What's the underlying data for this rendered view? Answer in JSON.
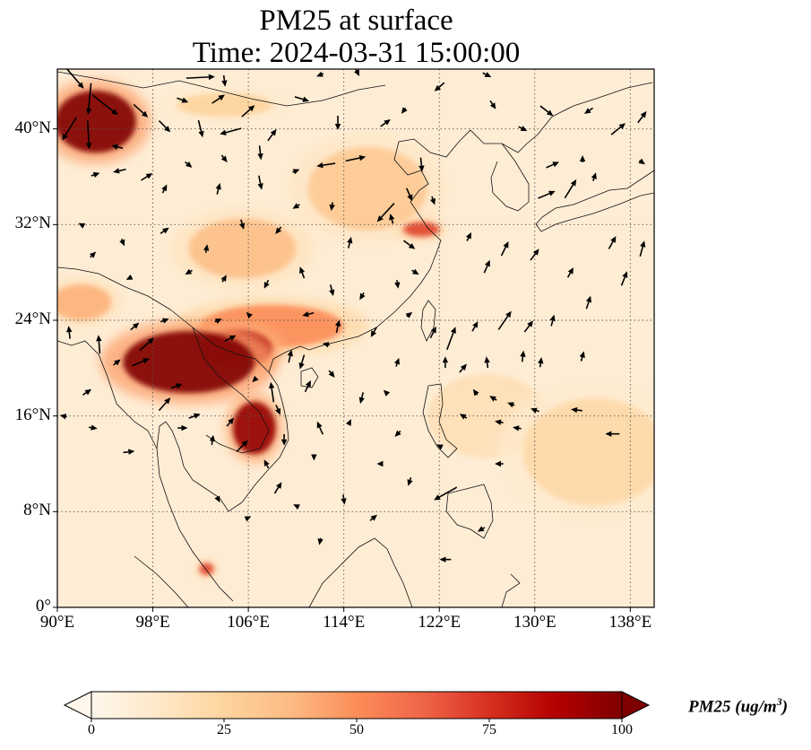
{
  "title": {
    "line1": "PM25 at surface",
    "line2": "Time: 2024-03-31 15:00:00"
  },
  "map": {
    "extent": {
      "lon_min": 90,
      "lon_max": 140,
      "lat_min": 0,
      "lat_max": 45
    },
    "lat_ticks": [
      {
        "value": 40,
        "label": "40°N"
      },
      {
        "value": 32,
        "label": "32°N"
      },
      {
        "value": 24,
        "label": "24°N"
      },
      {
        "value": 16,
        "label": "16°N"
      },
      {
        "value": 8,
        "label": "8°N"
      },
      {
        "value": 0,
        "label": "0°"
      }
    ],
    "lon_ticks": [
      {
        "value": 90,
        "label": "90°E"
      },
      {
        "value": 98,
        "label": "98°E"
      },
      {
        "value": 106,
        "label": "106°E"
      },
      {
        "value": 114,
        "label": "114°E"
      },
      {
        "value": 122,
        "label": "122°E"
      },
      {
        "value": 130,
        "label": "130°E"
      },
      {
        "value": 138,
        "label": "138°E"
      }
    ],
    "gridlines": "dotted",
    "background_pm25": 8,
    "hotspots": [
      {
        "name": "taklimakan",
        "lon": 93.2,
        "lat": 40.6,
        "rx_deg": 3.4,
        "ry_deg": 2.6,
        "pm25": 100
      },
      {
        "name": "myanmar-laos",
        "lon": 101.0,
        "lat": 20.5,
        "rx_deg": 5.5,
        "ry_deg": 2.6,
        "pm25": 100
      },
      {
        "name": "northern-laos",
        "lon": 105.0,
        "lat": 21.6,
        "rx_deg": 3.0,
        "ry_deg": 1.6,
        "pm25": 90
      },
      {
        "name": "cambodia-laos-south",
        "lon": 106.5,
        "lat": 15.0,
        "rx_deg": 1.8,
        "ry_deg": 2.2,
        "pm25": 95
      },
      {
        "name": "south-china",
        "lon": 108.0,
        "lat": 23.5,
        "rx_deg": 6.0,
        "ry_deg": 1.8,
        "pm25": 50
      },
      {
        "name": "yangtze-delta",
        "lon": 120.5,
        "lat": 31.6,
        "rx_deg": 1.5,
        "ry_deg": 0.6,
        "pm25": 70
      },
      {
        "name": "sichuan-basin",
        "lon": 105.5,
        "lat": 30.0,
        "rx_deg": 4.5,
        "ry_deg": 2.5,
        "pm25": 35
      },
      {
        "name": "north-china-plain",
        "lon": 116.0,
        "lat": 35.0,
        "rx_deg": 5.0,
        "ry_deg": 3.5,
        "pm25": 30
      },
      {
        "name": "tibet-edge",
        "lon": 92.0,
        "lat": 25.5,
        "rx_deg": 2.5,
        "ry_deg": 1.5,
        "pm25": 40
      },
      {
        "name": "western-pacific",
        "lon": 135.0,
        "lat": 13.0,
        "rx_deg": 6.0,
        "ry_deg": 4.5,
        "pm25": 22
      },
      {
        "name": "philippine-sea",
        "lon": 126.0,
        "lat": 16.0,
        "rx_deg": 5.0,
        "ry_deg": 3.5,
        "pm25": 18
      },
      {
        "name": "malay-peninsula",
        "lon": 102.5,
        "lat": 3.2,
        "rx_deg": 0.6,
        "ry_deg": 0.5,
        "pm25": 70
      },
      {
        "name": "mongolia-west",
        "lon": 104.0,
        "lat": 42.0,
        "rx_deg": 4.0,
        "ry_deg": 1.0,
        "pm25": 25
      }
    ],
    "wind_vectors": [
      {
        "lon": 91.5,
        "lat": 44.2,
        "u": 1.2,
        "v": -1.4
      },
      {
        "lon": 92.7,
        "lat": 42.5,
        "u": -0.2,
        "v": -2.2
      },
      {
        "lon": 94.0,
        "lat": 42.0,
        "u": 1.8,
        "v": -1.4
      },
      {
        "lon": 91.0,
        "lat": 40.0,
        "u": -1.0,
        "v": -1.6
      },
      {
        "lon": 92.6,
        "lat": 39.5,
        "u": 0.1,
        "v": -2.0
      },
      {
        "lon": 95.0,
        "lat": 38.5,
        "u": -0.8,
        "v": 0.2
      },
      {
        "lon": 93.2,
        "lat": 36.2,
        "u": 0.6,
        "v": 0.2
      },
      {
        "lon": 95.2,
        "lat": 36.5,
        "u": -0.9,
        "v": -0.2
      },
      {
        "lon": 97.5,
        "lat": 36.0,
        "u": 0.8,
        "v": 0.5
      },
      {
        "lon": 97.0,
        "lat": 41.5,
        "u": 1.0,
        "v": -0.9
      },
      {
        "lon": 99.0,
        "lat": 40.2,
        "u": 0.8,
        "v": -0.8
      },
      {
        "lon": 102.0,
        "lat": 44.3,
        "u": 2.0,
        "v": 0.1
      },
      {
        "lon": 104.0,
        "lat": 44.0,
        "u": 0.1,
        "v": -0.8
      },
      {
        "lon": 100.5,
        "lat": 42.4,
        "u": 0.8,
        "v": -0.3
      },
      {
        "lon": 103.5,
        "lat": 42.5,
        "u": 0.9,
        "v": 0.6
      },
      {
        "lon": 102.0,
        "lat": 40.0,
        "u": 0.3,
        "v": -1.2
      },
      {
        "lon": 104.5,
        "lat": 39.8,
        "u": -1.5,
        "v": -0.4
      },
      {
        "lon": 106.0,
        "lat": 41.5,
        "u": 0.9,
        "v": 0.8
      },
      {
        "lon": 108.0,
        "lat": 39.5,
        "u": 0.6,
        "v": 0.8
      },
      {
        "lon": 107.0,
        "lat": 38.0,
        "u": 0.1,
        "v": -1.0
      },
      {
        "lon": 104.0,
        "lat": 37.5,
        "u": 0.4,
        "v": -0.5
      },
      {
        "lon": 101.0,
        "lat": 37.0,
        "u": 0.5,
        "v": -0.4
      },
      {
        "lon": 99.0,
        "lat": 35.0,
        "u": 0.3,
        "v": 0.6
      },
      {
        "lon": 103.5,
        "lat": 35.0,
        "u": 0.2,
        "v": 0.8
      },
      {
        "lon": 107.0,
        "lat": 35.5,
        "u": 0.2,
        "v": -1.0
      },
      {
        "lon": 110.0,
        "lat": 36.5,
        "u": 0.5,
        "v": 0.2
      },
      {
        "lon": 112.5,
        "lat": 37.0,
        "u": -1.3,
        "v": -0.2
      },
      {
        "lon": 115.0,
        "lat": 37.5,
        "u": 1.4,
        "v": 0.3
      },
      {
        "lon": 117.5,
        "lat": 40.5,
        "u": 0.7,
        "v": 0.5
      },
      {
        "lon": 113.5,
        "lat": 40.5,
        "u": 0.0,
        "v": -1.0
      },
      {
        "lon": 110.5,
        "lat": 42.5,
        "u": 1.0,
        "v": -0.3
      },
      {
        "lon": 112.0,
        "lat": 44.5,
        "u": -0.5,
        "v": -0.2
      },
      {
        "lon": 115.0,
        "lat": 45.0,
        "u": 0.5,
        "v": -1.0
      },
      {
        "lon": 122.0,
        "lat": 43.5,
        "u": -0.7,
        "v": -0.6
      },
      {
        "lon": 119.0,
        "lat": 41.5,
        "u": -0.3,
        "v": -0.4
      },
      {
        "lon": 126.0,
        "lat": 44.5,
        "u": 0.6,
        "v": -0.3
      },
      {
        "lon": 126.5,
        "lat": 42.0,
        "u": 0.4,
        "v": -0.6
      },
      {
        "lon": 129.0,
        "lat": 40.0,
        "u": 0.6,
        "v": -0.3
      },
      {
        "lon": 131.0,
        "lat": 41.5,
        "u": 0.9,
        "v": -0.7
      },
      {
        "lon": 134.5,
        "lat": 41.5,
        "u": -0.6,
        "v": -0.4
      },
      {
        "lon": 137.0,
        "lat": 40.0,
        "u": 1.0,
        "v": 0.8
      },
      {
        "lon": 139.0,
        "lat": 41.0,
        "u": 0.6,
        "v": 0.8
      },
      {
        "lon": 134.0,
        "lat": 37.5,
        "u": 0.0,
        "v": 0.5
      },
      {
        "lon": 139.0,
        "lat": 37.2,
        "u": 0.4,
        "v": -0.3
      },
      {
        "lon": 131.5,
        "lat": 37.0,
        "u": 0.9,
        "v": 0.4
      },
      {
        "lon": 133.0,
        "lat": 35.0,
        "u": 0.8,
        "v": 1.3
      },
      {
        "lon": 135.0,
        "lat": 36.0,
        "u": 0.2,
        "v": 0.6
      },
      {
        "lon": 131.0,
        "lat": 34.5,
        "u": 1.2,
        "v": 0.5
      },
      {
        "lon": 120.5,
        "lat": 37.0,
        "u": 0.1,
        "v": -1.0
      },
      {
        "lon": 117.5,
        "lat": 33.0,
        "u": -1.2,
        "v": -1.3
      },
      {
        "lon": 119.5,
        "lat": 34.5,
        "u": 0.4,
        "v": -0.9
      },
      {
        "lon": 121.5,
        "lat": 34.0,
        "u": 0.2,
        "v": -0.6
      },
      {
        "lon": 118.0,
        "lat": 32.5,
        "u": -0.2,
        "v": 0.7
      },
      {
        "lon": 119.5,
        "lat": 30.3,
        "u": 0.8,
        "v": -0.6
      },
      {
        "lon": 120.0,
        "lat": 28.0,
        "u": 0.5,
        "v": -0.3
      },
      {
        "lon": 118.5,
        "lat": 27.0,
        "u": 0.1,
        "v": -0.6
      },
      {
        "lon": 114.5,
        "lat": 30.5,
        "u": 0.2,
        "v": 0.8
      },
      {
        "lon": 113.0,
        "lat": 33.5,
        "u": -0.1,
        "v": -0.6
      },
      {
        "lon": 110.0,
        "lat": 33.5,
        "u": -0.5,
        "v": -0.3
      },
      {
        "lon": 108.5,
        "lat": 31.5,
        "u": -0.4,
        "v": -0.5
      },
      {
        "lon": 105.5,
        "lat": 32.0,
        "u": 0.2,
        "v": -0.7
      },
      {
        "lon": 102.5,
        "lat": 30.0,
        "u": 0.1,
        "v": 0.6
      },
      {
        "lon": 99.0,
        "lat": 31.5,
        "u": 0.6,
        "v": 0.4
      },
      {
        "lon": 95.5,
        "lat": 30.5,
        "u": 0.2,
        "v": -0.5
      },
      {
        "lon": 93.0,
        "lat": 29.5,
        "u": 0.4,
        "v": 0.4
      },
      {
        "lon": 92.0,
        "lat": 32.0,
        "u": -0.4,
        "v": 0.2
      },
      {
        "lon": 96.0,
        "lat": 27.5,
        "u": -0.4,
        "v": -0.2
      },
      {
        "lon": 101.0,
        "lat": 28.0,
        "u": -0.5,
        "v": -0.3
      },
      {
        "lon": 104.0,
        "lat": 27.5,
        "u": 0.3,
        "v": 0.5
      },
      {
        "lon": 107.5,
        "lat": 27.0,
        "u": -0.3,
        "v": -0.6
      },
      {
        "lon": 110.5,
        "lat": 28.0,
        "u": -0.3,
        "v": 0.8
      },
      {
        "lon": 113.0,
        "lat": 26.5,
        "u": 0.2,
        "v": -0.8
      },
      {
        "lon": 115.5,
        "lat": 26.0,
        "u": -0.3,
        "v": -0.5
      },
      {
        "lon": 111.0,
        "lat": 24.5,
        "u": -0.8,
        "v": -0.2
      },
      {
        "lon": 113.5,
        "lat": 23.5,
        "u": 0.2,
        "v": 0.9
      },
      {
        "lon": 116.5,
        "lat": 23.0,
        "u": -0.4,
        "v": -0.7
      },
      {
        "lon": 119.5,
        "lat": 24.5,
        "u": 0.4,
        "v": 0.3
      },
      {
        "lon": 121.5,
        "lat": 23.0,
        "u": 0.4,
        "v": 0.8
      },
      {
        "lon": 123.0,
        "lat": 22.5,
        "u": 0.6,
        "v": 1.6
      },
      {
        "lon": 125.0,
        "lat": 23.5,
        "u": 0.4,
        "v": 0.7
      },
      {
        "lon": 127.5,
        "lat": 24.0,
        "u": 0.9,
        "v": 1.3
      },
      {
        "lon": 129.5,
        "lat": 23.5,
        "u": 0.6,
        "v": 0.8
      },
      {
        "lon": 131.5,
        "lat": 24.0,
        "u": 0.2,
        "v": 0.8
      },
      {
        "lon": 134.5,
        "lat": 25.5,
        "u": 0.3,
        "v": 0.9
      },
      {
        "lon": 137.5,
        "lat": 27.5,
        "u": 0.4,
        "v": 1.0
      },
      {
        "lon": 139.0,
        "lat": 30.0,
        "u": 0.3,
        "v": 1.1
      },
      {
        "lon": 136.5,
        "lat": 30.5,
        "u": 0.5,
        "v": 0.9
      },
      {
        "lon": 133.0,
        "lat": 28.0,
        "u": 0.4,
        "v": 0.7
      },
      {
        "lon": 130.0,
        "lat": 29.5,
        "u": 0.6,
        "v": 0.8
      },
      {
        "lon": 126.0,
        "lat": 28.5,
        "u": 0.4,
        "v": 0.9
      },
      {
        "lon": 124.5,
        "lat": 31.0,
        "u": 0.3,
        "v": 0.6
      },
      {
        "lon": 127.5,
        "lat": 30.0,
        "u": 0.5,
        "v": 1.0
      },
      {
        "lon": 122.5,
        "lat": 20.5,
        "u": 0.0,
        "v": 0.8
      },
      {
        "lon": 124.0,
        "lat": 20.0,
        "u": 0.5,
        "v": 0.6
      },
      {
        "lon": 126.0,
        "lat": 20.5,
        "u": -0.1,
        "v": 0.8
      },
      {
        "lon": 129.0,
        "lat": 21.0,
        "u": 0.1,
        "v": 0.8
      },
      {
        "lon": 130.5,
        "lat": 20.5,
        "u": 0.1,
        "v": 0.7
      },
      {
        "lon": 134.0,
        "lat": 21.0,
        "u": 0.2,
        "v": 0.7
      },
      {
        "lon": 125.0,
        "lat": 18.0,
        "u": -0.3,
        "v": 0.4
      },
      {
        "lon": 126.5,
        "lat": 17.5,
        "u": -0.5,
        "v": 0.3
      },
      {
        "lon": 128.0,
        "lat": 17.0,
        "u": -0.5,
        "v": 0.2
      },
      {
        "lon": 130.0,
        "lat": 16.5,
        "u": -0.6,
        "v": 0.2
      },
      {
        "lon": 133.5,
        "lat": 16.5,
        "u": -0.8,
        "v": 0.1
      },
      {
        "lon": 136.5,
        "lat": 14.5,
        "u": -1.0,
        "v": 0.0
      },
      {
        "lon": 124.0,
        "lat": 16.0,
        "u": -0.5,
        "v": 0.3
      },
      {
        "lon": 127.0,
        "lat": 15.5,
        "u": -0.6,
        "v": 0.1
      },
      {
        "lon": 128.5,
        "lat": 15.0,
        "u": -0.6,
        "v": 0.1
      },
      {
        "lon": 122.0,
        "lat": 13.5,
        "u": -0.4,
        "v": 0.2
      },
      {
        "lon": 127.0,
        "lat": 12.0,
        "u": -0.6,
        "v": 0.0
      },
      {
        "lon": 122.5,
        "lat": 9.5,
        "u": -1.6,
        "v": -0.9
      },
      {
        "lon": 125.5,
        "lat": 6.5,
        "u": -0.5,
        "v": -0.3
      },
      {
        "lon": 122.5,
        "lat": 4.0,
        "u": -0.8,
        "v": 0.0
      },
      {
        "lon": 119.5,
        "lat": 10.5,
        "u": -0.2,
        "v": -0.6
      },
      {
        "lon": 117.0,
        "lat": 12.0,
        "u": -0.4,
        "v": 0.0
      },
      {
        "lon": 118.5,
        "lat": 14.5,
        "u": -0.4,
        "v": -0.4
      },
      {
        "lon": 115.5,
        "lat": 17.5,
        "u": -0.2,
        "v": -0.8
      },
      {
        "lon": 118.5,
        "lat": 20.5,
        "u": 0.2,
        "v": 0.6
      },
      {
        "lon": 117.5,
        "lat": 18.0,
        "u": -0.3,
        "v": 0.3
      },
      {
        "lon": 113.0,
        "lat": 19.5,
        "u": 0.4,
        "v": -0.5
      },
      {
        "lon": 114.5,
        "lat": 15.5,
        "u": 0.2,
        "v": 0.4
      },
      {
        "lon": 112.0,
        "lat": 15.0,
        "u": -0.4,
        "v": 0.9
      },
      {
        "lon": 111.5,
        "lat": 12.5,
        "u": 0.0,
        "v": -0.4
      },
      {
        "lon": 111.0,
        "lat": 18.5,
        "u": 0.4,
        "v": 0.8
      },
      {
        "lon": 109.5,
        "lat": 21.0,
        "u": 0.2,
        "v": 0.9
      },
      {
        "lon": 108.0,
        "lat": 18.0,
        "u": -0.2,
        "v": 1.4
      },
      {
        "lon": 108.5,
        "lat": 16.5,
        "u": 0.3,
        "v": -0.7
      },
      {
        "lon": 109.0,
        "lat": 14.0,
        "u": 0.0,
        "v": -0.8
      },
      {
        "lon": 107.5,
        "lat": 12.0,
        "u": -0.3,
        "v": 0.6
      },
      {
        "lon": 108.5,
        "lat": 10.0,
        "u": 0.5,
        "v": 0.8
      },
      {
        "lon": 110.0,
        "lat": 8.5,
        "u": -0.4,
        "v": 0.2
      },
      {
        "lon": 114.0,
        "lat": 9.0,
        "u": 0.1,
        "v": -0.7
      },
      {
        "lon": 112.0,
        "lat": 5.5,
        "u": -0.1,
        "v": -0.5
      },
      {
        "lon": 116.5,
        "lat": 7.5,
        "u": 0.5,
        "v": 0.4
      },
      {
        "lon": 106.0,
        "lat": 7.5,
        "u": 0.4,
        "v": 0.2
      },
      {
        "lon": 103.5,
        "lat": 9.0,
        "u": 0.2,
        "v": -0.4
      },
      {
        "lon": 105.5,
        "lat": 13.5,
        "u": 0.8,
        "v": 0.8
      },
      {
        "lon": 104.5,
        "lat": 15.5,
        "u": 0.5,
        "v": 0.6
      },
      {
        "lon": 103.0,
        "lat": 14.0,
        "u": 0.1,
        "v": 0.7
      },
      {
        "lon": 101.5,
        "lat": 16.0,
        "u": 0.8,
        "v": 0.3
      },
      {
        "lon": 100.5,
        "lat": 15.0,
        "u": 0.7,
        "v": 0.0
      },
      {
        "lon": 99.0,
        "lat": 17.0,
        "u": 0.8,
        "v": 0.9
      },
      {
        "lon": 100.0,
        "lat": 18.5,
        "u": 0.8,
        "v": 0.3
      },
      {
        "lon": 97.0,
        "lat": 20.5,
        "u": 1.2,
        "v": 0.5
      },
      {
        "lon": 97.5,
        "lat": 22.0,
        "u": 1.0,
        "v": 0.9
      },
      {
        "lon": 96.5,
        "lat": 23.5,
        "u": 0.6,
        "v": 0.5
      },
      {
        "lon": 99.0,
        "lat": 24.0,
        "u": 0.6,
        "v": 0.2
      },
      {
        "lon": 93.5,
        "lat": 22.0,
        "u": -0.1,
        "v": 1.3
      },
      {
        "lon": 95.0,
        "lat": 20.5,
        "u": 0.5,
        "v": 0.4
      },
      {
        "lon": 92.5,
        "lat": 18.0,
        "u": 0.6,
        "v": 0.4
      },
      {
        "lon": 91.0,
        "lat": 23.0,
        "u": -0.1,
        "v": 0.9
      },
      {
        "lon": 93.0,
        "lat": 15.0,
        "u": 0.6,
        "v": -0.1
      },
      {
        "lon": 96.0,
        "lat": 13.0,
        "u": 0.8,
        "v": 0.1
      },
      {
        "lon": 90.5,
        "lat": 16.0,
        "u": -0.5,
        "v": 0.1
      },
      {
        "lon": 103.5,
        "lat": 24.0,
        "u": 0.5,
        "v": 0.2
      },
      {
        "lon": 106.0,
        "lat": 24.5,
        "u": -0.3,
        "v": 0.3
      },
      {
        "lon": 106.5,
        "lat": 19.0,
        "u": -0.3,
        "v": -0.3
      },
      {
        "lon": 104.5,
        "lat": 22.5,
        "u": 0.8,
        "v": 0.4
      },
      {
        "lon": 112.5,
        "lat": 22.0,
        "u": -0.5,
        "v": 0.1
      },
      {
        "lon": 110.5,
        "lat": 20.5,
        "u": -0.3,
        "v": -1.0
      }
    ]
  },
  "colorbar": {
    "label_main": "PM25 (ug/m",
    "label_exp": "3",
    "label_end": ")",
    "min": 0,
    "max": 100,
    "extend": "both",
    "ticks": [
      {
        "value": 0,
        "label": "0"
      },
      {
        "value": 25,
        "label": "25"
      },
      {
        "value": 50,
        "label": "50"
      },
      {
        "value": 75,
        "label": "75"
      },
      {
        "value": 100,
        "label": "100"
      }
    ],
    "colormap": "OrRd",
    "colormap_stops": [
      "#fff7ec",
      "#fee8c8",
      "#fdd49e",
      "#fdbb84",
      "#fc8d59",
      "#ef6548",
      "#d7301f",
      "#b30000",
      "#7f0000"
    ]
  }
}
